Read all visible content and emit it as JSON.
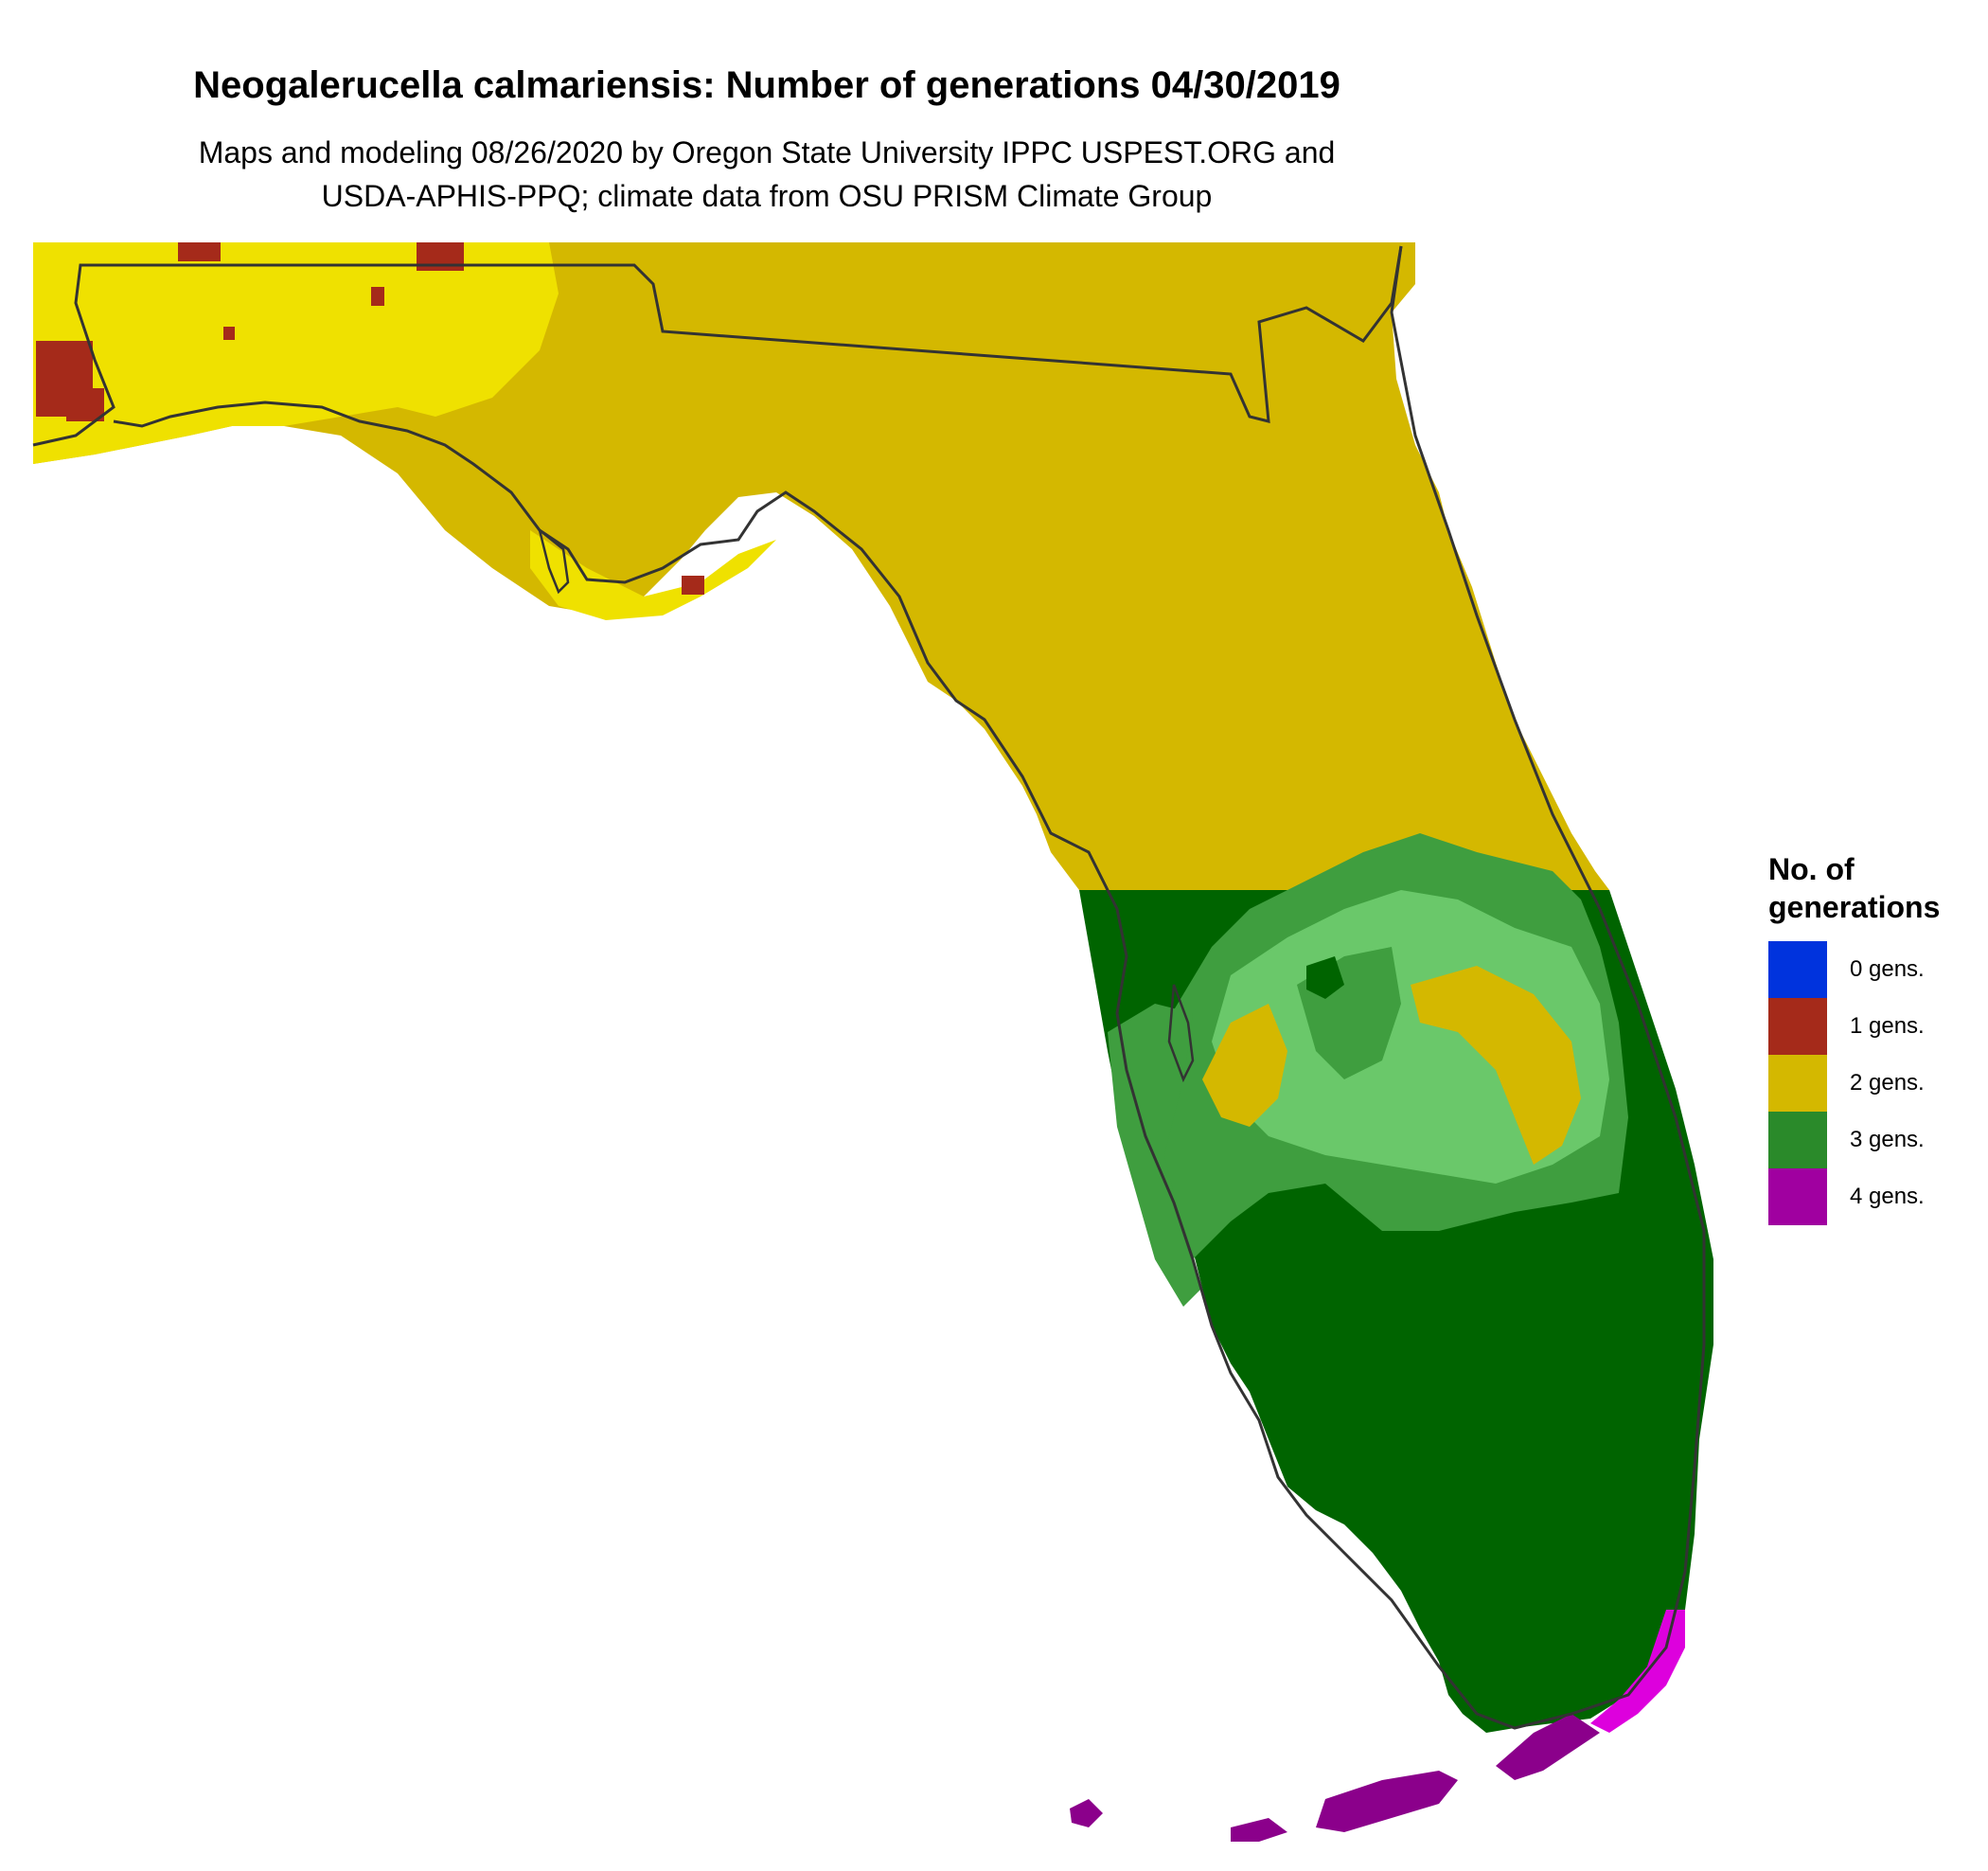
{
  "title": "Neogalerucella calmariensis: Number of generations 04/30/2019",
  "subtitle": {
    "line1": "Maps and modeling 08/26/2020 by Oregon State University IPPC USPEST.ORG and",
    "line2": "USDA-APHIS-PPQ; climate data from OSU PRISM Climate Group"
  },
  "map": {
    "region": "Florida"
  },
  "legend": {
    "title_line1": "No. of",
    "title_line2": "generations",
    "items": [
      {
        "label": "0 gens.",
        "color": "#0033dd"
      },
      {
        "label": "1 gens.",
        "color": "#a52a1a"
      },
      {
        "label": "2 gens.",
        "color": "#d4b800"
      },
      {
        "label": "3 gens.",
        "color": "#2a8a2a"
      },
      {
        "label": "4 gens.",
        "color": "#a000a0"
      }
    ]
  }
}
